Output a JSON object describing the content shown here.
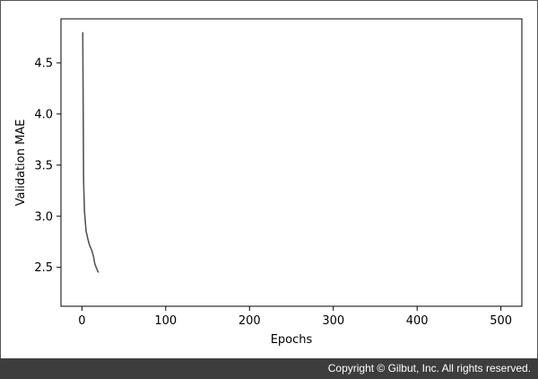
{
  "chart_data": {
    "type": "line",
    "title": "",
    "xlabel": "Epochs",
    "ylabel": "Validation MAE",
    "xlim": [
      -25,
      525
    ],
    "ylim": [
      2.12,
      4.93
    ],
    "xticks": [
      0,
      100,
      200,
      300,
      400,
      500
    ],
    "yticks": [
      2.5,
      3.0,
      3.5,
      4.0,
      4.5
    ],
    "ytick_labels": [
      "2.5",
      "3.0",
      "3.5",
      "4.0",
      "4.5"
    ],
    "grid": false,
    "line_color": "#555555",
    "series": [
      {
        "values": [
          4.8,
          3.35,
          3.05,
          2.95,
          2.85,
          2.82,
          2.78,
          2.75,
          2.72,
          2.7,
          2.68,
          2.66,
          2.63,
          2.6,
          2.55,
          2.52,
          2.5,
          2.48,
          2.46,
          2.45
        ]
      }
    ]
  },
  "footer": {
    "copyright": "Copyright © Gilbut, Inc. All rights reserved."
  }
}
